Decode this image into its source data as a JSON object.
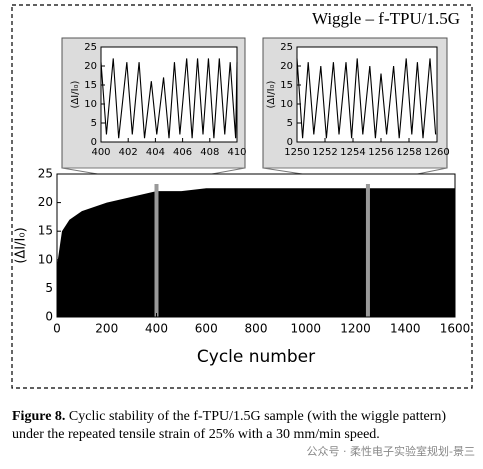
{
  "chart_data": [
    {
      "type": "area",
      "title": "Wiggle – f-TPU/1.5G",
      "x_label": "Cycle number",
      "y_label": "(ΔI/I₀)",
      "color": "#000000",
      "x": [
        0,
        20,
        50,
        100,
        200,
        300,
        400,
        500,
        600,
        800,
        1000,
        1200,
        1400,
        1600
      ],
      "values": [
        9,
        15,
        17,
        18.5,
        20,
        21,
        22,
        22,
        22.5,
        22.5,
        22.5,
        22.5,
        22.5,
        22.5
      ],
      "xlim": [
        0,
        1600
      ],
      "xticks": [
        0,
        200,
        400,
        600,
        800,
        1000,
        1200,
        1400,
        1600
      ],
      "ylim": [
        0,
        25
      ],
      "yticks": [
        0,
        5,
        10,
        15,
        20,
        25
      ]
    },
    {
      "type": "line",
      "y_label": "(ΔI/I₀)",
      "color": "#000000",
      "x": [
        400,
        400.4,
        400.9,
        401.3,
        401.9,
        402.3,
        402.8,
        403.2,
        403.7,
        404.1,
        404.6,
        405.0,
        405.4,
        405.8,
        406.3,
        406.7,
        407.1,
        407.5,
        407.9,
        408.3,
        408.7,
        409.1,
        409.5,
        409.9,
        410
      ],
      "values": [
        21,
        2,
        22,
        1,
        21,
        2,
        21,
        1,
        16,
        2,
        17,
        1,
        21,
        2,
        22,
        1,
        22,
        2,
        22,
        1,
        22,
        2,
        21,
        1,
        21
      ],
      "xlim": [
        400,
        410
      ],
      "xticks": [
        400,
        402,
        404,
        406,
        408,
        410
      ],
      "ylim": [
        0,
        25
      ],
      "yticks": [
        0,
        5,
        10,
        15,
        20,
        25
      ]
    },
    {
      "type": "line",
      "y_label": "(ΔI/I₀)",
      "color": "#000000",
      "x": [
        1250,
        1250.4,
        1250.8,
        1251.2,
        1251.7,
        1252.1,
        1252.6,
        1253.0,
        1253.5,
        1253.9,
        1254.3,
        1254.7,
        1255.2,
        1255.6,
        1256.0,
        1256.4,
        1256.9,
        1257.3,
        1257.8,
        1258.2,
        1258.6,
        1259.0,
        1259.5,
        1259.9
      ],
      "values": [
        22,
        1,
        21,
        2,
        20,
        1,
        21,
        2,
        21,
        1,
        22,
        2,
        20,
        1,
        18,
        2,
        20,
        1,
        22,
        2,
        21,
        1,
        22,
        2
      ],
      "xlim": [
        1250,
        1260
      ],
      "xticks": [
        1250,
        1252,
        1254,
        1256,
        1258,
        1260
      ],
      "ylim": [
        0,
        25
      ],
      "yticks": [
        0,
        5,
        10,
        15,
        20,
        25
      ]
    }
  ],
  "caption": {
    "label": "Figure 8.",
    "text": "Cyclic stability of the f-TPU/1.5G sample (with the wiggle pattern) under the repeated tensile strain of 25% with a 30 mm/min speed."
  },
  "watermark": "公众号 · 柔性电子实验室规划-景三"
}
